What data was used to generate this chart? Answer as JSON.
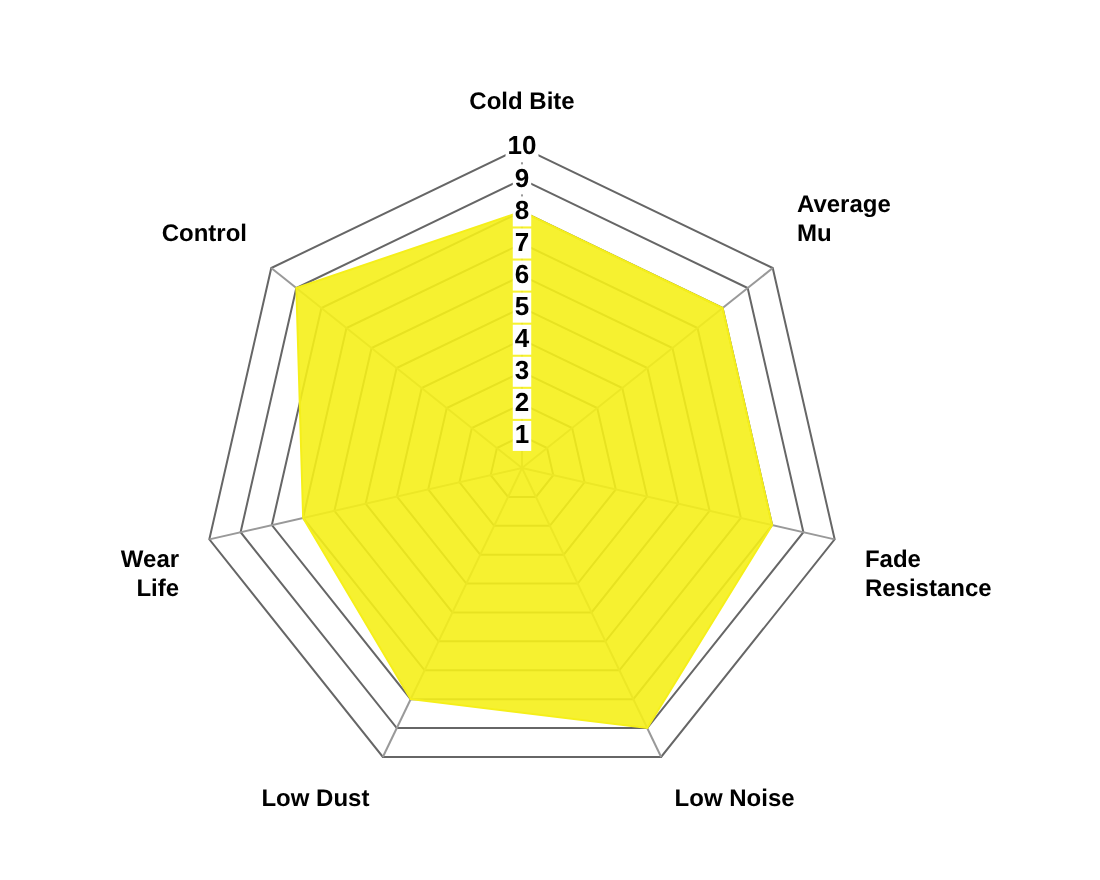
{
  "chart_data": {
    "type": "radar",
    "categories": [
      "Cold Bite",
      "Average\nMu",
      "Fade\nResistance",
      "Low Noise",
      "Low Dust",
      "Wear\nLife",
      "Control"
    ],
    "series": [
      {
        "color": "#f5ef1a",
        "values": [
          8,
          8,
          8,
          9,
          8,
          7,
          9
        ]
      }
    ],
    "ylim": [
      0,
      10
    ],
    "yticks": [
      1,
      2,
      3,
      4,
      5,
      6,
      7,
      8,
      9,
      10
    ],
    "grid": true,
    "legend": false,
    "marker": "none"
  }
}
